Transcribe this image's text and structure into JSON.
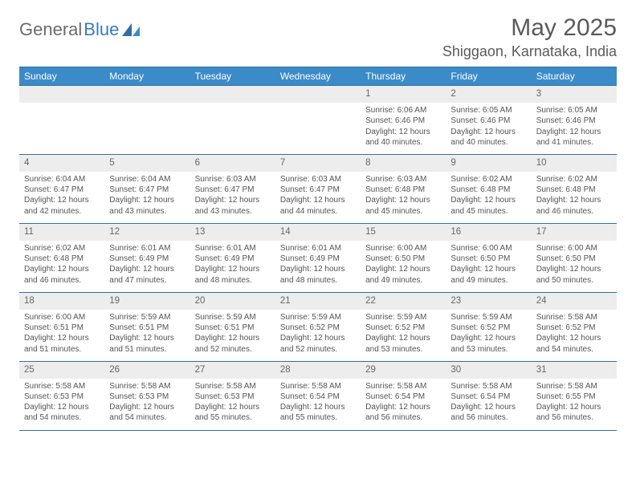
{
  "logo": {
    "text_gray": "General",
    "text_blue": "Blue"
  },
  "title": "May 2025",
  "location": "Shiggaon, Karnataka, India",
  "colors": {
    "header_bg": "#3b8bc9",
    "header_border": "#2f6fa3",
    "daynum_bg": "#ededed",
    "text": "#555555",
    "logo_gray": "#6b6b6b",
    "logo_blue": "#3b7bbf"
  },
  "weekdays": [
    "Sunday",
    "Monday",
    "Tuesday",
    "Wednesday",
    "Thursday",
    "Friday",
    "Saturday"
  ],
  "weeks": [
    {
      "nums": [
        "",
        "",
        "",
        "",
        "1",
        "2",
        "3"
      ],
      "cells": [
        null,
        null,
        null,
        null,
        {
          "sunrise": "6:06 AM",
          "sunset": "6:46 PM",
          "daylight": "12 hours and 40 minutes."
        },
        {
          "sunrise": "6:05 AM",
          "sunset": "6:46 PM",
          "daylight": "12 hours and 40 minutes."
        },
        {
          "sunrise": "6:05 AM",
          "sunset": "6:46 PM",
          "daylight": "12 hours and 41 minutes."
        }
      ]
    },
    {
      "nums": [
        "4",
        "5",
        "6",
        "7",
        "8",
        "9",
        "10"
      ],
      "cells": [
        {
          "sunrise": "6:04 AM",
          "sunset": "6:47 PM",
          "daylight": "12 hours and 42 minutes."
        },
        {
          "sunrise": "6:04 AM",
          "sunset": "6:47 PM",
          "daylight": "12 hours and 43 minutes."
        },
        {
          "sunrise": "6:03 AM",
          "sunset": "6:47 PM",
          "daylight": "12 hours and 43 minutes."
        },
        {
          "sunrise": "6:03 AM",
          "sunset": "6:47 PM",
          "daylight": "12 hours and 44 minutes."
        },
        {
          "sunrise": "6:03 AM",
          "sunset": "6:48 PM",
          "daylight": "12 hours and 45 minutes."
        },
        {
          "sunrise": "6:02 AM",
          "sunset": "6:48 PM",
          "daylight": "12 hours and 45 minutes."
        },
        {
          "sunrise": "6:02 AM",
          "sunset": "6:48 PM",
          "daylight": "12 hours and 46 minutes."
        }
      ]
    },
    {
      "nums": [
        "11",
        "12",
        "13",
        "14",
        "15",
        "16",
        "17"
      ],
      "cells": [
        {
          "sunrise": "6:02 AM",
          "sunset": "6:48 PM",
          "daylight": "12 hours and 46 minutes."
        },
        {
          "sunrise": "6:01 AM",
          "sunset": "6:49 PM",
          "daylight": "12 hours and 47 minutes."
        },
        {
          "sunrise": "6:01 AM",
          "sunset": "6:49 PM",
          "daylight": "12 hours and 48 minutes."
        },
        {
          "sunrise": "6:01 AM",
          "sunset": "6:49 PM",
          "daylight": "12 hours and 48 minutes."
        },
        {
          "sunrise": "6:00 AM",
          "sunset": "6:50 PM",
          "daylight": "12 hours and 49 minutes."
        },
        {
          "sunrise": "6:00 AM",
          "sunset": "6:50 PM",
          "daylight": "12 hours and 49 minutes."
        },
        {
          "sunrise": "6:00 AM",
          "sunset": "6:50 PM",
          "daylight": "12 hours and 50 minutes."
        }
      ]
    },
    {
      "nums": [
        "18",
        "19",
        "20",
        "21",
        "22",
        "23",
        "24"
      ],
      "cells": [
        {
          "sunrise": "6:00 AM",
          "sunset": "6:51 PM",
          "daylight": "12 hours and 51 minutes."
        },
        {
          "sunrise": "5:59 AM",
          "sunset": "6:51 PM",
          "daylight": "12 hours and 51 minutes."
        },
        {
          "sunrise": "5:59 AM",
          "sunset": "6:51 PM",
          "daylight": "12 hours and 52 minutes."
        },
        {
          "sunrise": "5:59 AM",
          "sunset": "6:52 PM",
          "daylight": "12 hours and 52 minutes."
        },
        {
          "sunrise": "5:59 AM",
          "sunset": "6:52 PM",
          "daylight": "12 hours and 53 minutes."
        },
        {
          "sunrise": "5:59 AM",
          "sunset": "6:52 PM",
          "daylight": "12 hours and 53 minutes."
        },
        {
          "sunrise": "5:58 AM",
          "sunset": "6:52 PM",
          "daylight": "12 hours and 54 minutes."
        }
      ]
    },
    {
      "nums": [
        "25",
        "26",
        "27",
        "28",
        "29",
        "30",
        "31"
      ],
      "cells": [
        {
          "sunrise": "5:58 AM",
          "sunset": "6:53 PM",
          "daylight": "12 hours and 54 minutes."
        },
        {
          "sunrise": "5:58 AM",
          "sunset": "6:53 PM",
          "daylight": "12 hours and 54 minutes."
        },
        {
          "sunrise": "5:58 AM",
          "sunset": "6:53 PM",
          "daylight": "12 hours and 55 minutes."
        },
        {
          "sunrise": "5:58 AM",
          "sunset": "6:54 PM",
          "daylight": "12 hours and 55 minutes."
        },
        {
          "sunrise": "5:58 AM",
          "sunset": "6:54 PM",
          "daylight": "12 hours and 56 minutes."
        },
        {
          "sunrise": "5:58 AM",
          "sunset": "6:54 PM",
          "daylight": "12 hours and 56 minutes."
        },
        {
          "sunrise": "5:58 AM",
          "sunset": "6:55 PM",
          "daylight": "12 hours and 56 minutes."
        }
      ]
    }
  ],
  "labels": {
    "sunrise_prefix": "Sunrise: ",
    "sunset_prefix": "Sunset: ",
    "daylight_prefix": "Daylight: "
  }
}
